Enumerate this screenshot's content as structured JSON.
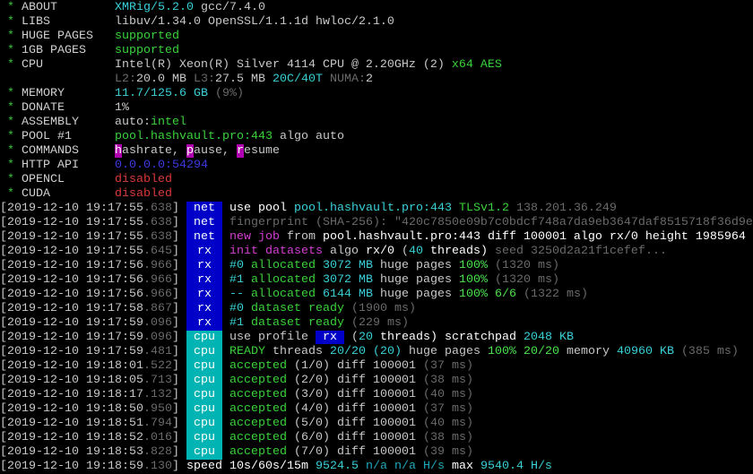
{
  "colors": {
    "net": "#0000c8",
    "rx": "#0000c8",
    "cpu": "#00b4b4"
  },
  "info": [
    {
      "label": "ABOUT",
      "segs": [
        [
          "XMRig/5.2.0",
          "c"
        ],
        [
          " gcc/7.4.0",
          "w"
        ]
      ]
    },
    {
      "label": "LIBS",
      "segs": [
        [
          "libuv/1.34.0 OpenSSL/1.1.1d hwloc/2.1.0",
          "w"
        ]
      ]
    },
    {
      "label": "HUGE PAGES",
      "segs": [
        [
          "supported",
          "g"
        ]
      ]
    },
    {
      "label": "1GB PAGES",
      "segs": [
        [
          "supported",
          "g"
        ]
      ]
    },
    {
      "label": "CPU",
      "segs": [
        [
          "Intel(R) Xeon(R) Silver 4114 CPU @ 2.20GHz (2) ",
          "w"
        ],
        [
          "x64 AES",
          "g"
        ]
      ]
    },
    {
      "label": "",
      "segs": [
        [
          "L2:",
          "k"
        ],
        [
          "20.0 MB ",
          "w"
        ],
        [
          "L3:",
          "k"
        ],
        [
          "27.5 MB ",
          "w"
        ],
        [
          "20C/40T ",
          "c"
        ],
        [
          "NUMA:",
          "k"
        ],
        [
          "2",
          "w"
        ]
      ]
    },
    {
      "label": "MEMORY",
      "segs": [
        [
          "11.7/125.6 GB ",
          "c"
        ],
        [
          "(9%)",
          "k"
        ]
      ]
    },
    {
      "label": "DONATE",
      "segs": [
        [
          "1%",
          "w"
        ]
      ]
    },
    {
      "label": "ASSEMBLY",
      "segs": [
        [
          "auto:",
          "w"
        ],
        [
          "intel",
          "g"
        ]
      ]
    },
    {
      "label": "POOL #1",
      "segs": [
        [
          "pool.hashvault.pro:443 ",
          "g"
        ],
        [
          "algo auto",
          "w"
        ]
      ]
    },
    {
      "label": "COMMANDS",
      "segs": [
        [
          "h",
          "hl"
        ],
        [
          "ashrate, ",
          "w"
        ],
        [
          "p",
          "hl"
        ],
        [
          "ause, ",
          "w"
        ],
        [
          "r",
          "hl"
        ],
        [
          "esume",
          "w"
        ]
      ]
    },
    {
      "label": "HTTP API",
      "segs": [
        [
          "0.0.0.0:54294",
          "b"
        ]
      ]
    },
    {
      "label": "OPENCL",
      "segs": [
        [
          "disabled",
          "r"
        ]
      ]
    },
    {
      "label": "CUDA",
      "segs": [
        [
          "disabled",
          "r"
        ]
      ]
    }
  ],
  "log": [
    {
      "time": "2019-12-10 19:17:55",
      "ms": ".638",
      "tag": "net",
      "segs": [
        [
          "use pool ",
          "W"
        ],
        [
          "pool.hashvault.pro:443 ",
          "c"
        ],
        [
          "TLSv1.2 ",
          "g"
        ],
        [
          "138.201.36.249",
          "k"
        ]
      ]
    },
    {
      "time": "2019-12-10 19:17:55",
      "ms": ".638",
      "tag": "net",
      "segs": [
        [
          "fingerprint (SHA-256): \"420c7850e09b7c0bdcf748a7da9eb3647daf8515718f36d9e",
          "k"
        ]
      ]
    },
    {
      "time": "2019-12-10 19:17:55",
      "ms": ".638",
      "tag": "net",
      "segs": [
        [
          "new job ",
          "m"
        ],
        [
          "from ",
          "w"
        ],
        [
          "pool.hashvault.pro:443 diff 100001 algo rx/0 height 1985964",
          "W"
        ]
      ]
    },
    {
      "time": "2019-12-10 19:17:55",
      "ms": ".645",
      "tag": "rx",
      "segs": [
        [
          "init datasets ",
          "m"
        ],
        [
          "algo ",
          "w"
        ],
        [
          "rx/0 ",
          "W"
        ],
        [
          "(",
          "w"
        ],
        [
          "40",
          "c"
        ],
        [
          " threads) ",
          "W"
        ],
        [
          "seed 3250d2a21f1cefef...",
          "k"
        ]
      ]
    },
    {
      "time": "2019-12-10 19:17:56",
      "ms": ".966",
      "tag": "rx",
      "segs": [
        [
          "#0 ",
          "c"
        ],
        [
          "allocated ",
          "g"
        ],
        [
          "3072 MB ",
          "c"
        ],
        [
          "huge pages ",
          "w"
        ],
        [
          "100% ",
          "G"
        ],
        [
          "(1320 ms)",
          "k"
        ]
      ]
    },
    {
      "time": "2019-12-10 19:17:56",
      "ms": ".966",
      "tag": "rx",
      "segs": [
        [
          "#1 ",
          "c"
        ],
        [
          "allocated ",
          "g"
        ],
        [
          "3072 MB ",
          "c"
        ],
        [
          "huge pages ",
          "w"
        ],
        [
          "100% ",
          "G"
        ],
        [
          "(1320 ms)",
          "k"
        ]
      ]
    },
    {
      "time": "2019-12-10 19:17:56",
      "ms": ".966",
      "tag": "rx",
      "segs": [
        [
          "-- ",
          "c"
        ],
        [
          "allocated ",
          "g"
        ],
        [
          "6144 MB ",
          "c"
        ],
        [
          "huge pages ",
          "w"
        ],
        [
          "100% 6/6 ",
          "G"
        ],
        [
          "(1322 ms)",
          "k"
        ]
      ]
    },
    {
      "time": "2019-12-10 19:17:58",
      "ms": ".867",
      "tag": "rx",
      "segs": [
        [
          "#0 ",
          "c"
        ],
        [
          "dataset ready ",
          "g"
        ],
        [
          "(1900 ms)",
          "k"
        ]
      ]
    },
    {
      "time": "2019-12-10 19:17:59",
      "ms": ".096",
      "tag": "rx",
      "segs": [
        [
          "#1 ",
          "c"
        ],
        [
          "dataset ready ",
          "g"
        ],
        [
          "(229 ms)",
          "k"
        ]
      ]
    },
    {
      "time": "2019-12-10 19:17:59",
      "ms": ".096",
      "tag": "cpu",
      "segs": [
        [
          "use profile ",
          "w"
        ],
        [
          " rx ",
          "bx"
        ],
        [
          " (",
          "w"
        ],
        [
          "20",
          "c"
        ],
        [
          " threads) scratchpad ",
          "W"
        ],
        [
          "2048 KB",
          "c"
        ]
      ]
    },
    {
      "time": "2019-12-10 19:17:59",
      "ms": ".481",
      "tag": "cpu",
      "segs": [
        [
          "READY ",
          "g"
        ],
        [
          "threads ",
          "w"
        ],
        [
          "20/20 (20) ",
          "c"
        ],
        [
          "huge pages ",
          "w"
        ],
        [
          "100% 20/20 ",
          "G"
        ],
        [
          "memory ",
          "w"
        ],
        [
          "40960 KB ",
          "c"
        ],
        [
          "(385 ms)",
          "k"
        ]
      ]
    },
    {
      "time": "2019-12-10 19:18:01",
      "ms": ".522",
      "tag": "cpu",
      "segs": [
        [
          "accepted ",
          "g"
        ],
        [
          "(1/0) diff 100001 ",
          "w"
        ],
        [
          "(37 ms)",
          "k"
        ]
      ]
    },
    {
      "time": "2019-12-10 19:18:05",
      "ms": ".713",
      "tag": "cpu",
      "segs": [
        [
          "accepted ",
          "g"
        ],
        [
          "(2/0) diff 100001 ",
          "w"
        ],
        [
          "(38 ms)",
          "k"
        ]
      ]
    },
    {
      "time": "2019-12-10 19:18:17",
      "ms": ".132",
      "tag": "cpu",
      "segs": [
        [
          "accepted ",
          "g"
        ],
        [
          "(3/0) diff 100001 ",
          "w"
        ],
        [
          "(40 ms)",
          "k"
        ]
      ]
    },
    {
      "time": "2019-12-10 19:18:50",
      "ms": ".950",
      "tag": "cpu",
      "segs": [
        [
          "accepted ",
          "g"
        ],
        [
          "(4/0) diff 100001 ",
          "w"
        ],
        [
          "(37 ms)",
          "k"
        ]
      ]
    },
    {
      "time": "2019-12-10 19:18:51",
      "ms": ".794",
      "tag": "cpu",
      "segs": [
        [
          "accepted ",
          "g"
        ],
        [
          "(5/0) diff 100001 ",
          "w"
        ],
        [
          "(40 ms)",
          "k"
        ]
      ]
    },
    {
      "time": "2019-12-10 19:18:52",
      "ms": ".016",
      "tag": "cpu",
      "segs": [
        [
          "accepted ",
          "g"
        ],
        [
          "(6/0) diff 100001 ",
          "w"
        ],
        [
          "(38 ms)",
          "k"
        ]
      ]
    },
    {
      "time": "2019-12-10 19:18:53",
      "ms": ".828",
      "tag": "cpu",
      "segs": [
        [
          "accepted ",
          "g"
        ],
        [
          "(7/0) diff 100001 ",
          "w"
        ],
        [
          "(39 ms)",
          "k"
        ]
      ]
    },
    {
      "time": "2019-12-10 19:18:59",
      "ms": ".130",
      "tag": "",
      "segs": [
        [
          "speed 10s/60s/15m ",
          "W"
        ],
        [
          "9524.5 ",
          "c"
        ],
        [
          "n/a n/a H/s ",
          "c2"
        ],
        [
          "max ",
          "W"
        ],
        [
          "9540.4 H/s",
          "c"
        ]
      ]
    }
  ]
}
